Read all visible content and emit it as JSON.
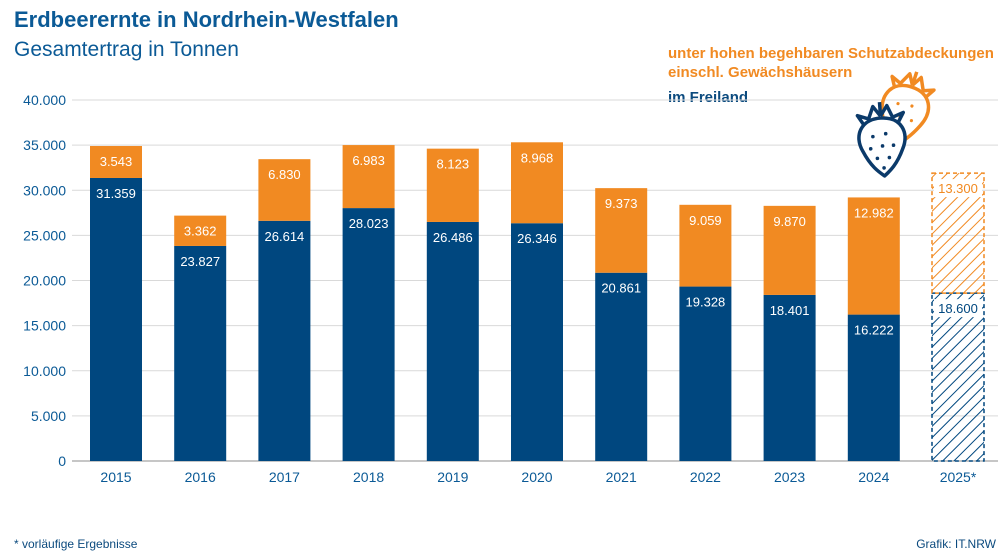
{
  "title": "Erdbeerernte in Nordrhein-Westfalen",
  "subtitle": "Gesamtertrag in Tonnen",
  "legend": {
    "protected_line1": "unter hohen begehbaren Schutzabdeckungen",
    "protected_line2": "einschl. Gewächshäusern",
    "open_field": "im Freiland"
  },
  "footnote": "*  vorläufige Ergebnisse",
  "source": "Grafik: IT.NRW",
  "colors": {
    "open_field": "#00477f",
    "protected": "#f18a22",
    "axis_text": "#0b5a96",
    "gridline": "#d9d9d9"
  },
  "icon": "strawberry-icon",
  "chart_data": {
    "type": "bar",
    "stacked": true,
    "categories": [
      "2015",
      "2016",
      "2017",
      "2018",
      "2019",
      "2020",
      "2021",
      "2022",
      "2023",
      "2024",
      "2025*"
    ],
    "series": [
      {
        "name": "im Freiland",
        "values": [
          31359,
          23827,
          26614,
          28023,
          26486,
          26346,
          20861,
          19328,
          18401,
          16222,
          18600
        ],
        "labels": [
          "31.359",
          "23.827",
          "26.614",
          "28.023",
          "26.486",
          "26.346",
          "20.861",
          "19.328",
          "18.401",
          "16.222",
          "18.600"
        ]
      },
      {
        "name": "unter hohen begehbaren Schutzabdeckungen einschl. Gewächshäusern",
        "values": [
          3543,
          3362,
          6830,
          6983,
          8123,
          8968,
          9373,
          9059,
          9870,
          12982,
          13300
        ],
        "labels": [
          "3.543",
          "3.362",
          "6.830",
          "6.983",
          "8.123",
          "8.968",
          "9.373",
          "9.059",
          "9.870",
          "12.982",
          "13.300"
        ]
      }
    ],
    "preliminary": [
      "2025*"
    ],
    "ylim": [
      0,
      40000
    ],
    "yticks": [
      0,
      5000,
      10000,
      15000,
      20000,
      25000,
      30000,
      35000,
      40000
    ],
    "ytick_labels": [
      "0",
      "5.000",
      "10.000",
      "15.000",
      "20.000",
      "25.000",
      "30.000",
      "35.000",
      "40.000"
    ],
    "grid": true,
    "legend_position": "top-right"
  }
}
